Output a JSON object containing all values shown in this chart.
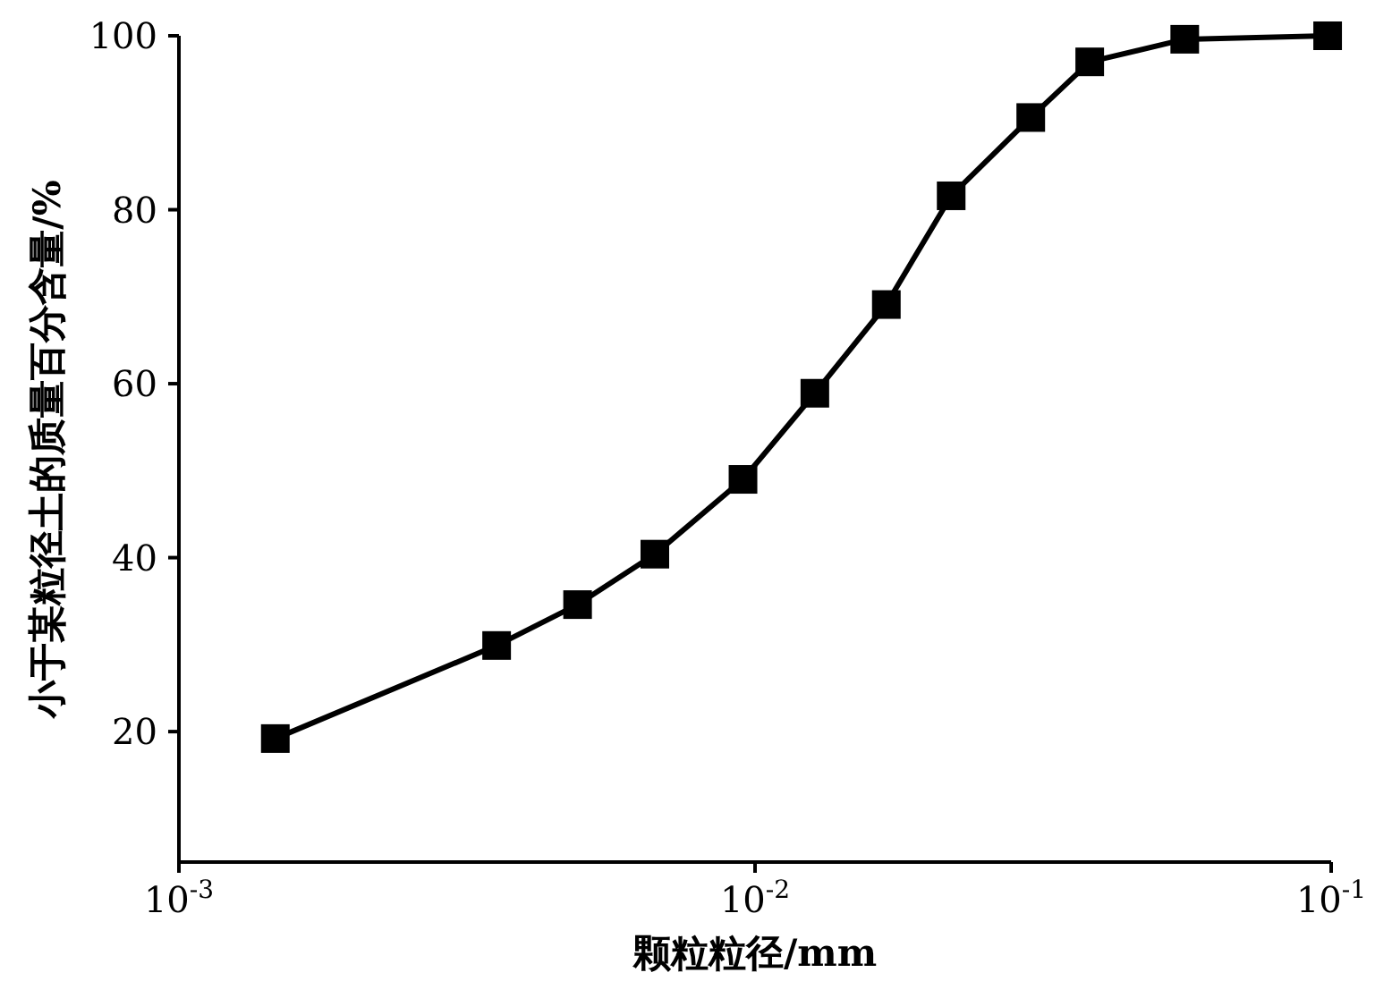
{
  "chart_data": {
    "type": "line",
    "xlabel": "颗粒粒径/mm",
    "ylabel": "小于某粒径土的质量百分含量/%",
    "x": [
      0.00147,
      0.00356,
      0.00492,
      0.0067,
      0.00953,
      0.0127,
      0.0169,
      0.0219,
      0.0301,
      0.0381,
      0.0557,
      0.0986
    ],
    "series": [
      {
        "color": "#000000",
        "values": [
          19.2,
          29.9,
          34.6,
          40.4,
          49.0,
          58.9,
          69.1,
          81.6,
          90.6,
          97.0,
          99.6,
          100
        ]
      }
    ],
    "log": "x",
    "xlim": [
      0.001,
      0.1
    ],
    "xticks": [
      {
        "value": 0.001,
        "label": "10$^{-3}$"
      },
      {
        "value": 0.01,
        "label": "10$^{-2}$"
      },
      {
        "value": 0.1,
        "label": "10$^{-1}$"
      }
    ],
    "ylim": [
      5,
      100
    ],
    "yticks": [
      20,
      40,
      60,
      80,
      100
    ],
    "grid": false,
    "legend": false,
    "marker": "square",
    "line_style": "solid"
  }
}
